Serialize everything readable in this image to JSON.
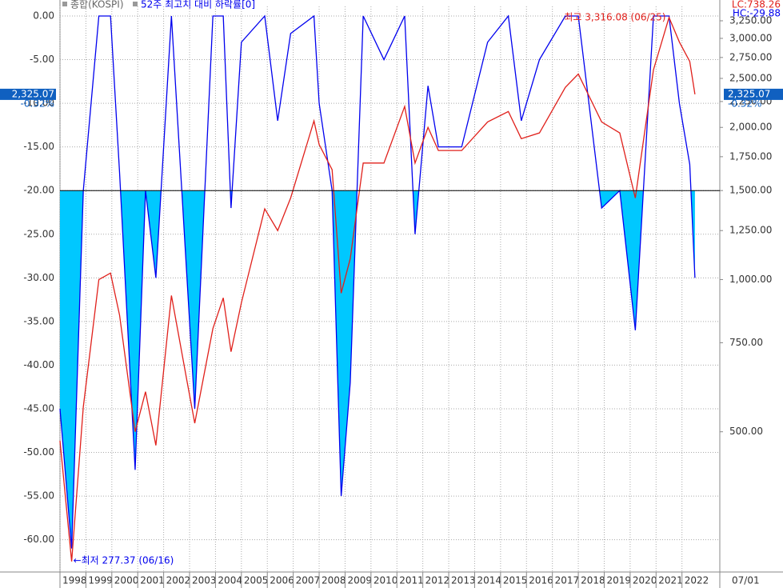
{
  "chart_data": {
    "type": "line",
    "legend": [
      "종합(KOSPI)"
    ],
    "x": [
      1998.0,
      1998.45,
      1998.9,
      1999.5,
      1999.95,
      2000.3,
      2000.9,
      2001.3,
      2001.7,
      2002.3,
      2002.9,
      2003.2,
      2003.9,
      2004.3,
      2004.6,
      2005.0,
      2005.9,
      2006.4,
      2006.9,
      2007.8,
      2008.0,
      2008.5,
      2008.85,
      2009.2,
      2009.7,
      2010.5,
      2011.3,
      2011.7,
      2012.2,
      2012.6,
      2013.5,
      2014.5,
      2015.3,
      2015.8,
      2016.5,
      2017.5,
      2018.0,
      2018.9,
      2019.6,
      2020.2,
      2020.9,
      2021.5,
      2021.9,
      2022.3,
      2022.5
    ],
    "series": [
      {
        "name": "52주 최고치 대비 하락률[0]",
        "color": "#0000ee",
        "fill": "#00c8ff",
        "values": [
          -45,
          -61,
          -20,
          0,
          0,
          -18,
          -52,
          -20,
          -30,
          0,
          -30,
          -45,
          0,
          0,
          -22,
          -3,
          0,
          -12,
          -2,
          0,
          -10,
          -20,
          -55,
          -42,
          0,
          -5,
          0,
          -25,
          -8,
          -15,
          -15,
          -3,
          0,
          -12,
          -5,
          0,
          0,
          -22,
          -20,
          -36,
          0,
          0,
          -10,
          -17,
          -30
        ]
      },
      {
        "name": "KOSPI",
        "axis": "y2",
        "color": "#e0201b",
        "values": [
          480,
          277,
          560,
          1000,
          1030,
          850,
          500,
          600,
          470,
          930,
          630,
          520,
          800,
          920,
          720,
          900,
          1380,
          1250,
          1450,
          2060,
          1850,
          1650,
          940,
          1100,
          1700,
          1700,
          2200,
          1700,
          2000,
          1800,
          1800,
          2050,
          2150,
          1900,
          1950,
          2400,
          2550,
          2050,
          1950,
          1450,
          2600,
          3300,
          2950,
          2700,
          2325
        ]
      }
    ],
    "threshold": -20,
    "xlim": [
      1998,
      2023.46
    ],
    "xticks": [
      1998,
      1999,
      2000,
      2001,
      2002,
      2003,
      2004,
      2005,
      2006,
      2007,
      2008,
      2009,
      2010,
      2011,
      2012,
      2013,
      2014,
      2015,
      2016,
      2017,
      2018,
      2019,
      2020,
      2021,
      2022
    ],
    "ylim": [
      -63.7,
      1.1
    ],
    "yticks": [
      {
        "value": 0,
        "label": "0.00"
      },
      {
        "value": -5,
        "label": "-5.00"
      },
      {
        "value": -10,
        "label": "-10.00"
      },
      {
        "value": -15,
        "label": "-15.00"
      },
      {
        "value": -20,
        "label": "-20.00"
      },
      {
        "value": -25,
        "label": "-25.00"
      },
      {
        "value": -30,
        "label": "-30.00"
      },
      {
        "value": -35,
        "label": "-35.00"
      },
      {
        "value": -40,
        "label": "-40.00"
      },
      {
        "value": -45,
        "label": "-45.00"
      },
      {
        "value": -50,
        "label": "-50.00"
      },
      {
        "value": -55,
        "label": "-55.00"
      },
      {
        "value": -60,
        "label": "-60.00"
      }
    ],
    "y2lim": [
      264,
      3470
    ],
    "y2log": true,
    "y2ticks": [
      {
        "value": 500,
        "label": "500.00"
      },
      {
        "value": 750,
        "label": "750.00"
      },
      {
        "value": 1000,
        "label": "1,000.00"
      },
      {
        "value": 1250,
        "label": "1,250.00"
      },
      {
        "value": 1500,
        "label": "1,500.00"
      },
      {
        "value": 1750,
        "label": "1,750.00"
      },
      {
        "value": 2000,
        "label": "2,000.00"
      },
      {
        "value": 2250,
        "label": "2,250.00"
      },
      {
        "value": 2500,
        "label": "2,500.00"
      },
      {
        "value": 2750,
        "label": "2,750.00"
      },
      {
        "value": 3000,
        "label": "3,000.00"
      },
      {
        "value": 3250,
        "label": "3,250.00"
      }
    ],
    "grid": true,
    "annotations": {
      "max": "최고 3,316.08 (06/25)",
      "min": "←최저 277.37 (06/16)",
      "last_value": "2,325.07",
      "last_change": "-0.32%",
      "lc": "LC:738.26",
      "hc": "HC:-29.88",
      "date": "07/01"
    }
  }
}
